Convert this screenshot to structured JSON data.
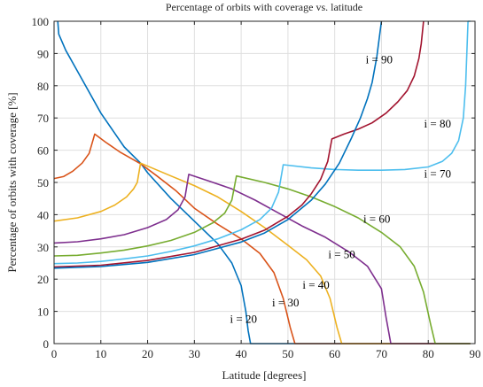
{
  "chart_data": {
    "type": "line",
    "title": "Percentage of orbits with coverage vs. latitude",
    "xlabel": "Latitude [degrees]",
    "ylabel": "Percentage of orbits with coverage [%]",
    "xlim": [
      0,
      90
    ],
    "ylim": [
      0,
      100
    ],
    "xticks": [
      0,
      10,
      20,
      30,
      40,
      50,
      60,
      70,
      80,
      90
    ],
    "yticks": [
      0,
      10,
      20,
      30,
      40,
      50,
      60,
      70,
      80,
      90,
      100
    ],
    "grid": true,
    "series": [
      {
        "name": "i = 20",
        "color": "#0072BD",
        "points": [
          [
            0.8,
            100
          ],
          [
            1,
            96
          ],
          [
            2.5,
            91
          ],
          [
            5,
            84.5
          ],
          [
            10,
            71.5
          ],
          [
            15,
            61
          ],
          [
            18.5,
            56
          ],
          [
            20,
            53
          ],
          [
            25,
            45
          ],
          [
            30,
            38
          ],
          [
            35,
            31
          ],
          [
            38,
            25
          ],
          [
            40,
            18
          ],
          [
            41,
            10
          ],
          [
            41.5,
            4
          ],
          [
            42,
            0
          ],
          [
            89,
            0
          ]
        ]
      },
      {
        "name": "i = 30",
        "color": "#D95319",
        "points": [
          [
            0,
            51.2
          ],
          [
            2,
            51.8
          ],
          [
            4,
            53.5
          ],
          [
            6,
            56
          ],
          [
            7.5,
            59
          ],
          [
            8.3,
            63
          ],
          [
            8.7,
            65
          ],
          [
            11,
            62.5
          ],
          [
            14,
            59.5
          ],
          [
            18.5,
            55.8
          ],
          [
            22,
            52
          ],
          [
            26,
            47.5
          ],
          [
            30,
            42
          ],
          [
            35,
            37
          ],
          [
            40,
            32.5
          ],
          [
            44,
            28
          ],
          [
            47,
            22
          ],
          [
            49,
            14
          ],
          [
            50.5,
            5
          ],
          [
            51.5,
            0
          ],
          [
            89,
            0
          ]
        ]
      },
      {
        "name": "i = 40",
        "color": "#EDB120",
        "points": [
          [
            0,
            38
          ],
          [
            5,
            39
          ],
          [
            10,
            41
          ],
          [
            13,
            43
          ],
          [
            15.5,
            45.5
          ],
          [
            17,
            48
          ],
          [
            17.8,
            50
          ],
          [
            18.5,
            56
          ],
          [
            25,
            52
          ],
          [
            30,
            49
          ],
          [
            35,
            45.5
          ],
          [
            40,
            41
          ],
          [
            45,
            36
          ],
          [
            50,
            30.5
          ],
          [
            54,
            26
          ],
          [
            57,
            21
          ],
          [
            59,
            14
          ],
          [
            60.5,
            5
          ],
          [
            61.5,
            0
          ],
          [
            89,
            0
          ]
        ]
      },
      {
        "name": "i = 50",
        "color": "#7E2F8E",
        "points": [
          [
            0,
            31.2
          ],
          [
            5,
            31.6
          ],
          [
            10,
            32.5
          ],
          [
            15,
            33.8
          ],
          [
            20,
            36
          ],
          [
            24,
            38.5
          ],
          [
            26.5,
            41.5
          ],
          [
            28,
            45.5
          ],
          [
            28.8,
            52.5
          ],
          [
            33,
            50.5
          ],
          [
            38,
            48
          ],
          [
            43,
            44.5
          ],
          [
            48,
            40.5
          ],
          [
            53,
            36.5
          ],
          [
            58,
            33
          ],
          [
            63,
            28.5
          ],
          [
            67,
            24
          ],
          [
            70,
            17
          ],
          [
            71,
            8
          ],
          [
            72,
            0
          ],
          [
            89,
            0
          ]
        ]
      },
      {
        "name": "i = 60",
        "color": "#77AC30",
        "points": [
          [
            0,
            27.2
          ],
          [
            5,
            27.4
          ],
          [
            10,
            28.1
          ],
          [
            15,
            29
          ],
          [
            20,
            30.3
          ],
          [
            25,
            32
          ],
          [
            30,
            34.5
          ],
          [
            34,
            37.5
          ],
          [
            36.5,
            40.5
          ],
          [
            38,
            44.5
          ],
          [
            39,
            52
          ],
          [
            45,
            50
          ],
          [
            50,
            48
          ],
          [
            55,
            45.5
          ],
          [
            60,
            42.5
          ],
          [
            65,
            39
          ],
          [
            70,
            34.5
          ],
          [
            74,
            30
          ],
          [
            77,
            24
          ],
          [
            79,
            16
          ],
          [
            80.5,
            6
          ],
          [
            81.5,
            0
          ],
          [
            89,
            0
          ]
        ]
      },
      {
        "name": "i = 70",
        "color": "#4DBEEE",
        "points": [
          [
            0,
            24.8
          ],
          [
            5,
            25
          ],
          [
            10,
            25.5
          ],
          [
            15,
            26.3
          ],
          [
            20,
            27.2
          ],
          [
            25,
            28.6
          ],
          [
            30,
            30.3
          ],
          [
            35,
            32.5
          ],
          [
            40,
            35.3
          ],
          [
            44,
            38.5
          ],
          [
            46.5,
            42
          ],
          [
            48,
            47
          ],
          [
            49,
            55.5
          ],
          [
            55,
            54.5
          ],
          [
            60,
            54
          ],
          [
            65,
            53.8
          ],
          [
            70,
            53.8
          ],
          [
            75,
            54
          ],
          [
            80,
            54.8
          ],
          [
            83,
            56.5
          ],
          [
            85,
            59
          ],
          [
            86.5,
            63
          ],
          [
            87.5,
            70
          ],
          [
            88,
            80
          ],
          [
            88.5,
            100
          ],
          [
            89,
            100
          ]
        ]
      },
      {
        "name": "i = 80",
        "color": "#A2142F",
        "points": [
          [
            0,
            23.8
          ],
          [
            10,
            24.3
          ],
          [
            20,
            25.8
          ],
          [
            30,
            28.3
          ],
          [
            40,
            32.4
          ],
          [
            45,
            35.2
          ],
          [
            50,
            39.5
          ],
          [
            53,
            43
          ],
          [
            55,
            46.5
          ],
          [
            57,
            51
          ],
          [
            58.5,
            56.5
          ],
          [
            59.4,
            63.5
          ],
          [
            62,
            65
          ],
          [
            65,
            66.5
          ],
          [
            68,
            68.5
          ],
          [
            71,
            71.5
          ],
          [
            73.5,
            75
          ],
          [
            75.5,
            78.5
          ],
          [
            77,
            83
          ],
          [
            78,
            88.5
          ],
          [
            78.5,
            93
          ],
          [
            79,
            100
          ]
        ]
      },
      {
        "name": "i = 90",
        "color": "#0072BD",
        "points": [
          [
            0,
            23.4
          ],
          [
            10,
            23.9
          ],
          [
            20,
            25.2
          ],
          [
            30,
            27.6
          ],
          [
            40,
            31.5
          ],
          [
            45,
            34.3
          ],
          [
            50,
            38.5
          ],
          [
            55,
            44.5
          ],
          [
            58,
            49.5
          ],
          [
            61,
            56
          ],
          [
            63.5,
            63.5
          ],
          [
            65.5,
            70
          ],
          [
            67,
            76
          ],
          [
            68,
            81
          ],
          [
            69,
            89
          ],
          [
            69.5,
            94.5
          ],
          [
            70,
            100
          ]
        ]
      }
    ],
    "annotations": [
      {
        "text": "i = 90",
        "x": 69.5,
        "y": 87
      },
      {
        "text": "i = 80",
        "x": 82,
        "y": 67
      },
      {
        "text": "i = 70",
        "x": 82,
        "y": 51.5
      },
      {
        "text": "i = 60",
        "x": 69,
        "y": 37.5
      },
      {
        "text": "i = 50",
        "x": 61.5,
        "y": 26.5
      },
      {
        "text": "i = 40",
        "x": 56,
        "y": 17
      },
      {
        "text": "i = 30",
        "x": 49.5,
        "y": 11.5
      },
      {
        "text": "i = 20",
        "x": 40.5,
        "y": 6.5
      }
    ]
  }
}
